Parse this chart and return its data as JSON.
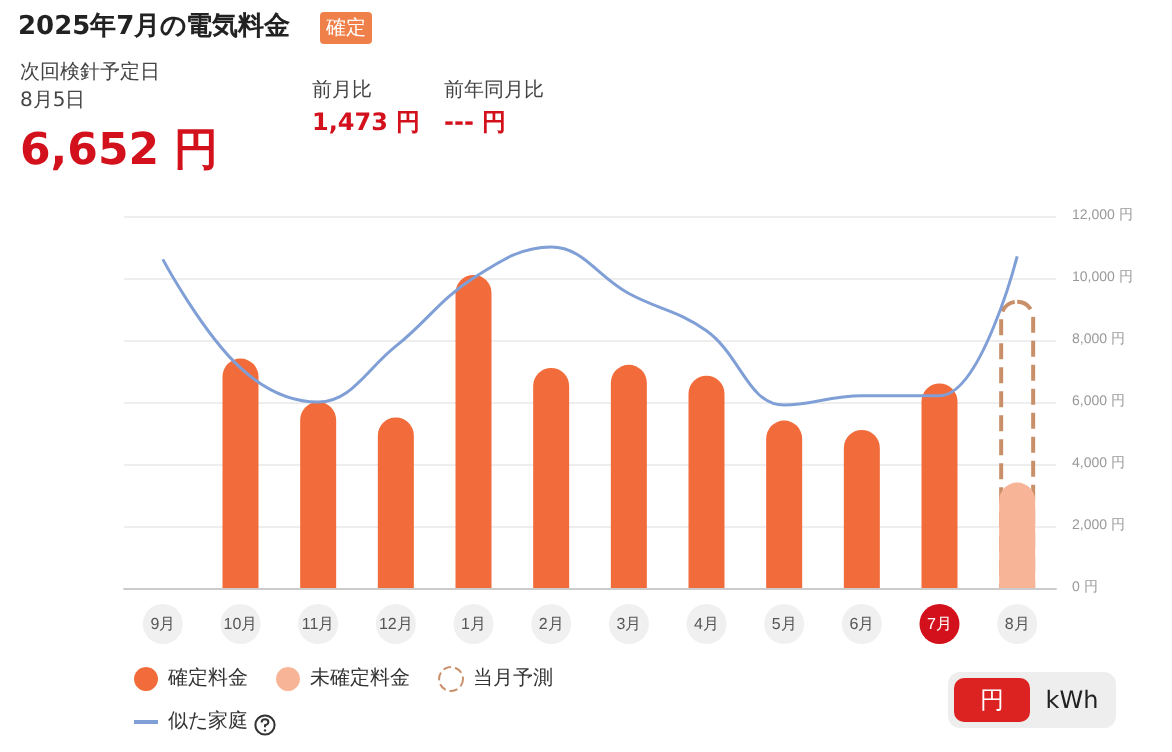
{
  "chart_data": {
    "type": "bar",
    "title": "2025年7月の電気料金",
    "annotations": [
      "確定",
      "次回検針予定日",
      "8月5日",
      "6,652 円",
      "前月比",
      "1,473 円",
      "前年同月比",
      "--- 円",
      "円",
      "kWh"
    ],
    "categories": [
      "9月",
      "10月",
      "11月",
      "12月",
      "1月",
      "2月",
      "3月",
      "4月",
      "5月",
      "6月",
      "7月",
      "8月"
    ],
    "series": [
      {
        "name": "当月予測",
        "line_style": "dashed",
        "color": "#c98f68",
        "values": [
          null,
          null,
          null,
          null,
          null,
          null,
          null,
          null,
          null,
          null,
          null,
          9300
        ]
      },
      {
        "name": "確定料金",
        "color": "#f26b3a",
        "values": [
          null,
          7400,
          6000,
          5500,
          10100,
          7100,
          7200,
          6850,
          5400,
          5100,
          6600,
          null
        ]
      },
      {
        "name": "未確定料金",
        "color": "#f8b496",
        "values": [
          null,
          null,
          null,
          null,
          null,
          null,
          null,
          null,
          null,
          null,
          null,
          3400
        ]
      },
      {
        "name": "似た家庭",
        "type": "line",
        "color": "#7f9fd6",
        "values": [
          10600,
          7100,
          6000,
          7800,
          10000,
          11000,
          9500,
          8300,
          5900,
          6200,
          6200,
          10700
        ]
      }
    ],
    "ylim": [
      0,
      12000
    ],
    "yticks": [
      {
        "value": 0,
        "label": "0 円"
      },
      {
        "value": 2000,
        "label": "2,000 円"
      },
      {
        "value": 4000,
        "label": "4,000 円"
      },
      {
        "value": 6000,
        "label": "6,000 円"
      },
      {
        "value": 8000,
        "label": "8,000 円"
      },
      {
        "value": 10000,
        "label": "10,000 円"
      },
      {
        "value": 12000,
        "label": "12,000 円"
      }
    ],
    "grid": "y",
    "legend": "bottom left",
    "marker": "none"
  }
}
